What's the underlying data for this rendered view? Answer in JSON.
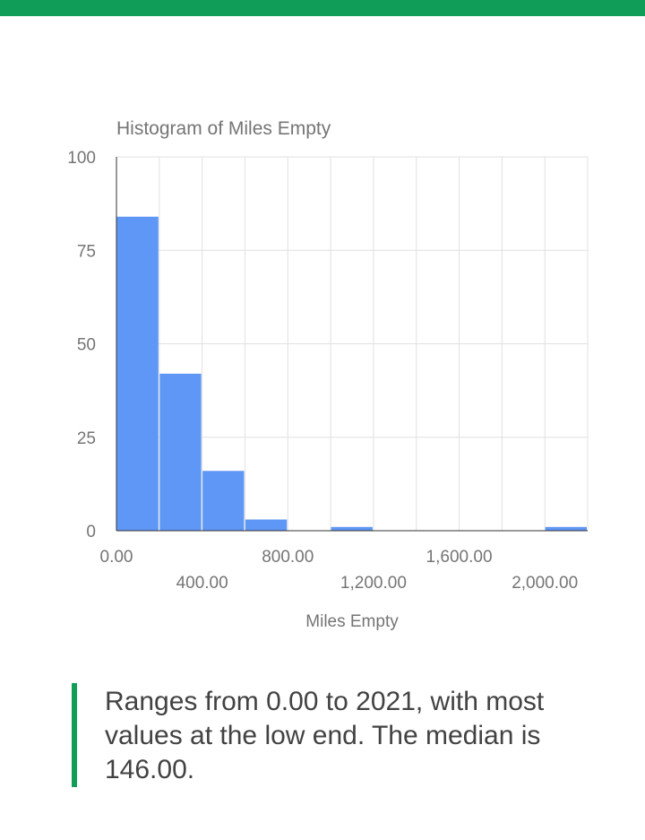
{
  "colors": {
    "accent_bar": "#0f9d58",
    "bar_fill": "#5e97f6",
    "grid": "#e0e0e0",
    "axis": "#333333",
    "text_muted": "#757575",
    "text_body": "#424242"
  },
  "chart_data": {
    "type": "bar",
    "title": "Histogram of Miles Empty",
    "xlabel": "Miles Empty",
    "ylabel": "",
    "ylim": [
      0,
      100
    ],
    "yticks": [
      "0",
      "25",
      "50",
      "75",
      "100"
    ],
    "xlim": [
      0,
      2200
    ],
    "bin_width": 200,
    "bins": [
      {
        "start": 0,
        "end": 200,
        "count": 84
      },
      {
        "start": 200,
        "end": 400,
        "count": 42
      },
      {
        "start": 400,
        "end": 600,
        "count": 16
      },
      {
        "start": 600,
        "end": 800,
        "count": 3
      },
      {
        "start": 800,
        "end": 1000,
        "count": 0
      },
      {
        "start": 1000,
        "end": 1200,
        "count": 1
      },
      {
        "start": 1200,
        "end": 1400,
        "count": 0
      },
      {
        "start": 1400,
        "end": 1600,
        "count": 0
      },
      {
        "start": 1600,
        "end": 1800,
        "count": 0
      },
      {
        "start": 1800,
        "end": 2000,
        "count": 0
      },
      {
        "start": 2000,
        "end": 2200,
        "count": 1
      }
    ],
    "xtick_labels": [
      {
        "value": 0,
        "label": "0.00",
        "row": 1
      },
      {
        "value": 400,
        "label": "400.00",
        "row": 2
      },
      {
        "value": 800,
        "label": "800.00",
        "row": 1
      },
      {
        "value": 1200,
        "label": "1,200.00",
        "row": 2
      },
      {
        "value": 1600,
        "label": "1,600.00",
        "row": 1
      },
      {
        "value": 2000,
        "label": "2,000.00",
        "row": 2
      }
    ],
    "grid": true,
    "legend": "none"
  },
  "summary": {
    "text": "Ranges from 0.00 to 2021, with most values at the low end. The median is 146.00."
  }
}
